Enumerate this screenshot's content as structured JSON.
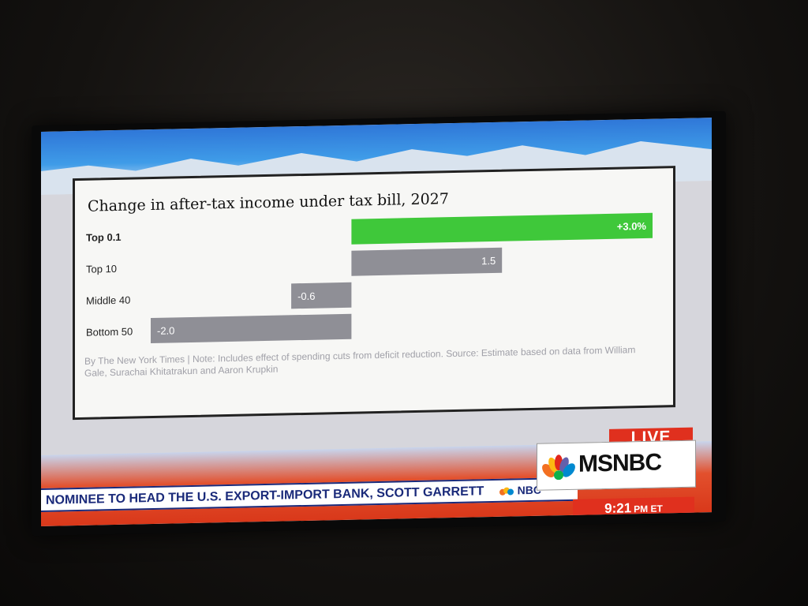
{
  "chart_data": {
    "type": "bar",
    "orientation": "horizontal",
    "title": "Change in after-tax income under tax bill, 2027",
    "categories": [
      "Top 0.1",
      "Top 10",
      "Middle 40",
      "Bottom 50"
    ],
    "values": [
      3.0,
      1.5,
      -0.6,
      -2.0
    ],
    "labels": [
      "+3.0%",
      "1.5",
      "-0.6",
      "-2.0"
    ],
    "xlim": [
      -2.0,
      3.0
    ],
    "colors": {
      "highlight": "#3fc83a",
      "default": "#8f8f96"
    },
    "grid": false,
    "note": "By The New York Times | Note: Includes effect of spending cuts from deficit reduction. Source: Estimate based on data from William Gale, Surachai Khitatrakun and Aaron Krupkin"
  },
  "broadcast": {
    "ticker_text": "NOMINEE TO HEAD THE U.S. EXPORT-IMPORT BANK, SCOTT GARRETT",
    "ticker_tail": "NBC",
    "logo_text": "MSNBC",
    "live_label": "LIVE",
    "time": "9:21",
    "time_suffix": "PM ET",
    "colors": {
      "red": "#e0301e",
      "navy": "#1a2a7a"
    }
  }
}
